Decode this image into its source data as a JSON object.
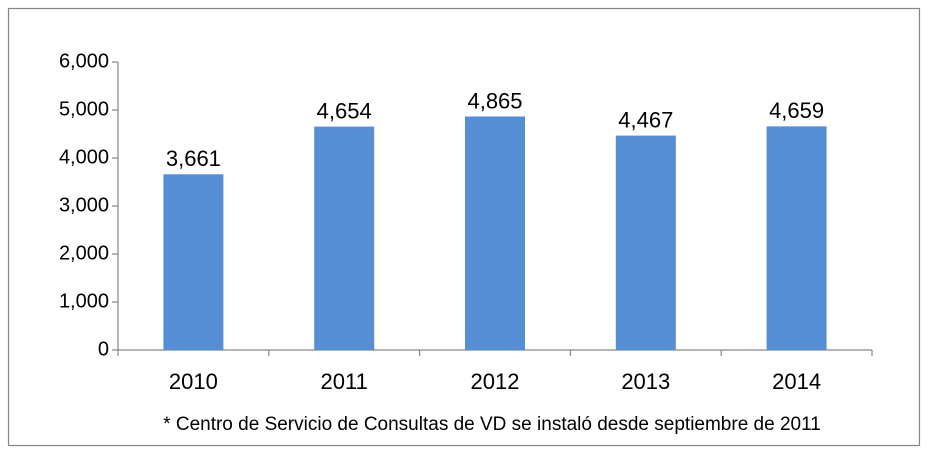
{
  "chart_data": {
    "type": "bar",
    "categories": [
      "2010",
      "2011",
      "2012",
      "2013",
      "2014"
    ],
    "values": [
      3661,
      4654,
      4865,
      4467,
      4659
    ],
    "value_labels": [
      "3,661",
      "4,654",
      "4,865",
      "4,467",
      "4,659"
    ],
    "color": "#558ed5",
    "ylim": [
      0,
      6000
    ],
    "yticks": [
      0,
      {
        "value": 1000,
        "label": "1,000"
      },
      {
        "value": 2000,
        "label": "2,000"
      },
      {
        "value": 3000,
        "label": "3,000"
      },
      {
        "value": 4000,
        "label": "4,000"
      },
      {
        "value": 5000,
        "label": "5,000"
      },
      {
        "value": 6000,
        "label": "6,000"
      }
    ],
    "grid": false,
    "annotation": "* Centro de Servicio de Consultas de VD se instaló desde septiembre de 2011"
  }
}
